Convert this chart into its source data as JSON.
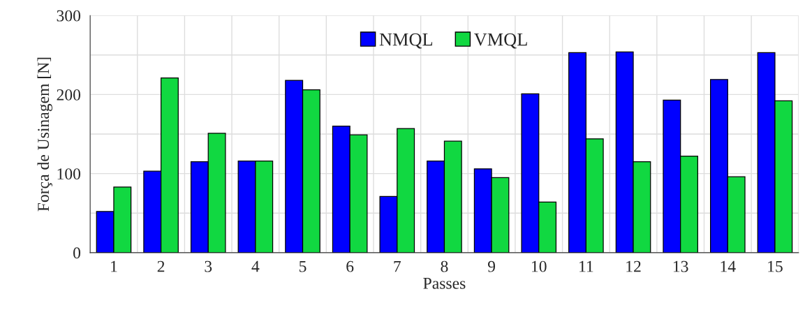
{
  "chart_data": {
    "type": "bar",
    "xlabel": "Passes",
    "ylabel": "Força de Usinagem [N]",
    "categories": [
      "1",
      "2",
      "3",
      "4",
      "5",
      "6",
      "7",
      "8",
      "9",
      "10",
      "11",
      "12",
      "13",
      "14",
      "15"
    ],
    "series": [
      {
        "name": "NMQL",
        "color": "#0000ff",
        "values": [
          52,
          103,
          115,
          116,
          218,
          160,
          71,
          116,
          106,
          201,
          253,
          254,
          193,
          219,
          253
        ]
      },
      {
        "name": "VMQL",
        "color": "#11d841",
        "values": [
          83,
          221,
          151,
          116,
          206,
          149,
          157,
          141,
          95,
          64,
          144,
          115,
          122,
          96,
          192
        ]
      }
    ],
    "ylim": [
      0,
      300
    ],
    "yticks": [
      0,
      {
        "value": 50,
        "label": null
      },
      100,
      {
        "value": 150,
        "label": null
      },
      200,
      {
        "value": 250,
        "label": null
      },
      300
    ],
    "grid": true,
    "legend": "top"
  }
}
